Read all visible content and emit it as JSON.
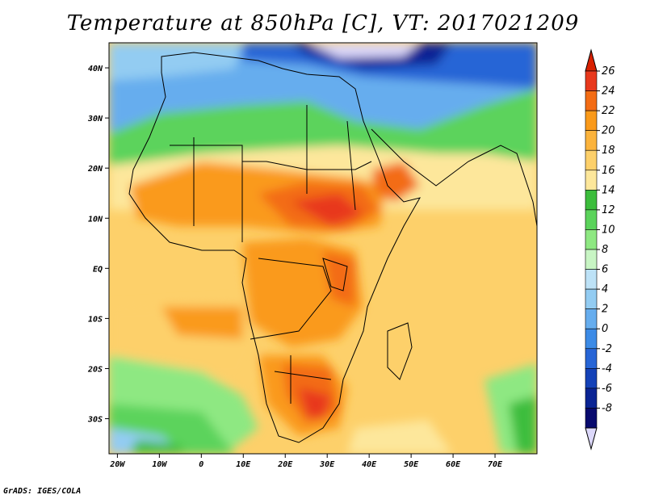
{
  "title": "Temperature at 850hPa [C], VT: 2017021209",
  "credit": "GrADS: IGES/COLA",
  "map": {
    "lon_range": [
      -22,
      80
    ],
    "lat_range": [
      -37,
      45
    ],
    "lon_ticks": [
      "20W",
      "10W",
      "0",
      "10E",
      "20E",
      "30E",
      "40E",
      "50E",
      "60E",
      "70E"
    ],
    "lat_ticks": [
      "40N",
      "30N",
      "20N",
      "10N",
      "EQ",
      "10S",
      "20S",
      "30S"
    ]
  },
  "colorbar": {
    "labels": [
      "26",
      "24",
      "22",
      "20",
      "18",
      "16",
      "14",
      "12",
      "10",
      "8",
      "6",
      "4",
      "2",
      "0",
      "-2",
      "-4",
      "-6",
      "-8"
    ],
    "colors": [
      "#e8381c",
      "#f36c14",
      "#fa9a1a",
      "#fbb33c",
      "#fdd06a",
      "#fde79b",
      "#3cbd3c",
      "#5bd35b",
      "#8ee882",
      "#c8f5c4",
      "#bde2f7",
      "#93ccf2",
      "#66adee",
      "#3c8be6",
      "#2765d6",
      "#1442b8",
      "#0a2494",
      "#080a6e"
    ],
    "top_color": "#d82000",
    "bottom_color": "#dcd8fa"
  }
}
